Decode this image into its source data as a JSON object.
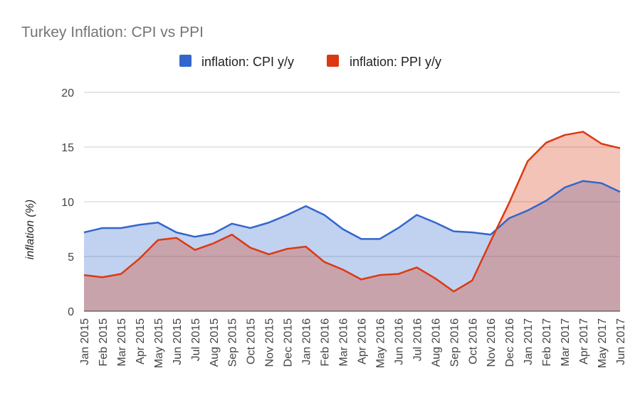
{
  "chart_data": {
    "type": "area",
    "title": "Turkey Inflation: CPI vs PPI",
    "xlabel": "",
    "ylabel": "inflation (%)",
    "ylim": [
      0,
      20
    ],
    "yticks": [
      0,
      5,
      10,
      15,
      20
    ],
    "grid": true,
    "legend_position": "top",
    "categories": [
      "Jan 2015",
      "Feb 2015",
      "Mar 2015",
      "Apr 2015",
      "May 2015",
      "Jun 2015",
      "Jul 2015",
      "Aug 2015",
      "Sep 2015",
      "Oct 2015",
      "Nov 2015",
      "Dec 2015",
      "Jan 2016",
      "Feb 2016",
      "Mar 2016",
      "Apr 2016",
      "May 2016",
      "Jun 2016",
      "Jul 2016",
      "Aug 2016",
      "Sep 2016",
      "Oct 2016",
      "Nov 2016",
      "Dec 2016",
      "Jan 2017",
      "Feb 2017",
      "Mar 2017",
      "Apr 2017",
      "May 2017",
      "Jun 2017"
    ],
    "series": [
      {
        "name": "inflation: CPI y/y",
        "color": "#3366cc",
        "fill": "#3366cc",
        "values": [
          7.2,
          7.6,
          7.6,
          7.9,
          8.1,
          7.2,
          6.8,
          7.1,
          8.0,
          7.6,
          8.1,
          8.8,
          9.6,
          8.8,
          7.5,
          6.6,
          6.6,
          7.6,
          8.8,
          8.1,
          7.3,
          7.2,
          7.0,
          8.5,
          9.2,
          10.1,
          11.3,
          11.9,
          11.7,
          10.9
        ]
      },
      {
        "name": "inflation: PPI y/y",
        "color": "#dc3912",
        "fill": "#dc3912",
        "values": [
          3.3,
          3.1,
          3.4,
          4.8,
          6.5,
          6.7,
          5.6,
          6.2,
          7.0,
          5.8,
          5.2,
          5.7,
          5.9,
          4.5,
          3.8,
          2.9,
          3.3,
          3.4,
          4.0,
          3.0,
          1.8,
          2.8,
          6.4,
          9.9,
          13.7,
          15.4,
          16.1,
          16.4,
          15.3,
          14.9
        ]
      }
    ]
  }
}
